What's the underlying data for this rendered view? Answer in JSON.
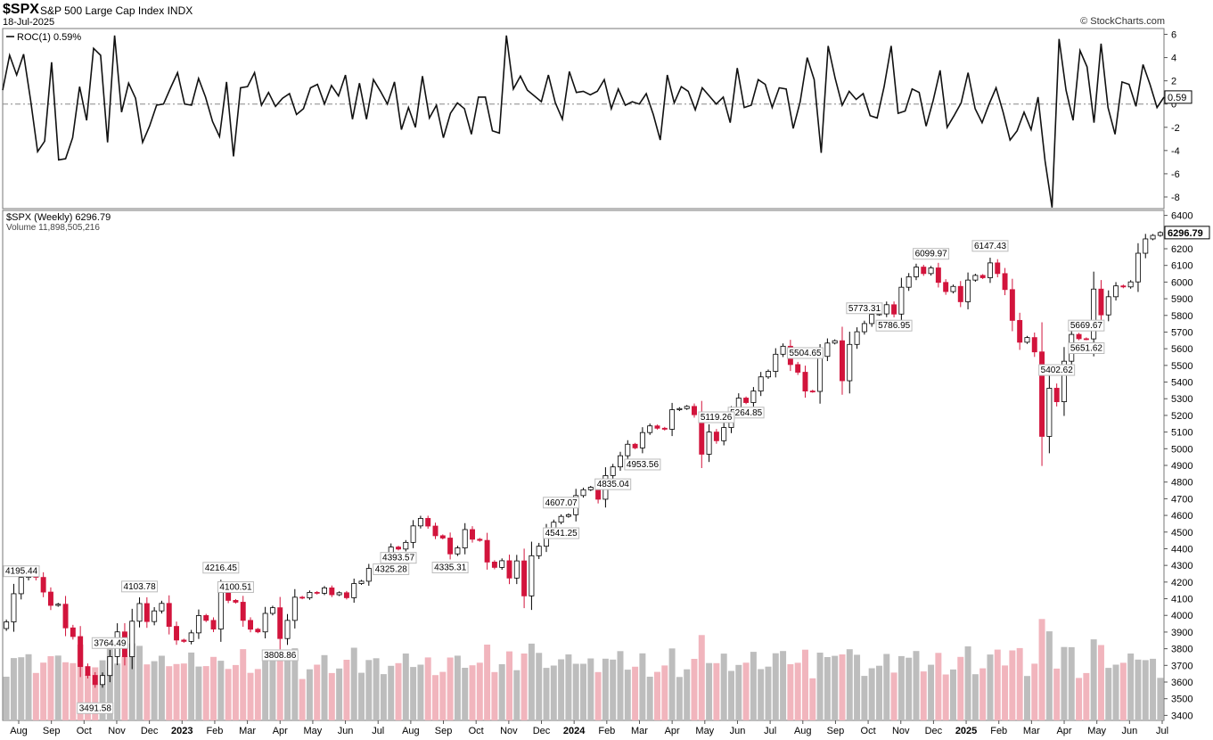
{
  "header": {
    "symbol": "$SPX",
    "name": "S&P 500 Large Cap Index",
    "exchange": "INDX",
    "date": "18-Jul-2025",
    "source": "© StockCharts.com"
  },
  "colors": {
    "up": "#ffffff",
    "down": "#d2143c",
    "vol_up": "#bdbdbd",
    "vol_down": "#f1b5bd",
    "line": "#111111",
    "zero": "#888888"
  },
  "chart_data": [
    {
      "type": "line",
      "panel": "indicator",
      "legend": "ROC(1) 0.59%",
      "last_value_label": "0.59",
      "ylim": [
        -9,
        6.5
      ],
      "yticks": [
        6,
        4,
        2,
        0,
        -2,
        -4,
        -6,
        -8
      ],
      "reference_line": 0,
      "y": [
        1.2,
        4.2,
        2.5,
        4.3,
        0.3,
        -4.1,
        -3.2,
        3.6,
        -4.8,
        -4.7,
        -2.9,
        1.5,
        -1.4,
        4.8,
        4.2,
        -3.3,
        5.9,
        -0.7,
        1.8,
        0.5,
        -3.3,
        -1.9,
        -0.1,
        0.0,
        1.4,
        2.7,
        0.0,
        -0.1,
        2.2,
        0.6,
        -1.5,
        -2.8,
        1.9,
        -4.5,
        1.4,
        1.5,
        2.7,
        -0.1,
        1.0,
        -0.2,
        0.5,
        0.9,
        -0.9,
        -0.4,
        1.4,
        1.7,
        0.0,
        1.6,
        0.7,
        2.5,
        -1.3,
        1.8,
        -1.3,
        2.1,
        1.1,
        0.0,
        1.9,
        -2.2,
        -0.3,
        -2.0,
        2.4,
        -1.2,
        -0.1,
        -2.9,
        -0.8,
        0.1,
        -0.4,
        -2.6,
        0.6,
        0.6,
        -2.3,
        -2.5,
        5.9,
        1.3,
        2.4,
        1.2,
        0.7,
        0.2,
        2.5,
        0.1,
        -1.3,
        2.8,
        1.0,
        1.1,
        0.8,
        1.1,
        2.1,
        -0.4,
        1.3,
        -0.1,
        0.2,
        0.0,
        0.9,
        -0.9,
        -3.1,
        2.5,
        0.1,
        1.5,
        1.1,
        -0.5,
        1.4,
        0.7,
        0.0,
        0.6,
        -1.6,
        3.1,
        -0.3,
        -0.1,
        2.1,
        1.7,
        -0.3,
        1.4,
        1.3,
        -2.1,
        0.2,
        4.0,
        2.1,
        -4.2,
        5.0,
        2.2,
        -0.1,
        1.1,
        0.4,
        0.9,
        -1.0,
        -1.2,
        1.5,
        5.0,
        -0.8,
        -0.6,
        1.3,
        1.0,
        -1.9,
        0.3,
        2.9,
        -2.0,
        -1.0,
        0.1,
        2.7,
        -0.4,
        -1.6,
        0.0,
        1.4,
        -0.7,
        -3.1,
        -2.3,
        -0.7,
        -2.2,
        0.6,
        -4.9,
        -8.9,
        5.6,
        1.2,
        -1.4,
        4.6,
        3.2,
        -1.6,
        5.2,
        -0.3,
        -2.6,
        1.9,
        1.7,
        -0.2,
        3.4,
        1.7,
        -0.3,
        0.6
      ]
    },
    {
      "type": "candlestick",
      "panel": "price",
      "legend": "$SPX (Weekly) 6296.79",
      "volume_legend": "Volume 11,898,505,216",
      "last_price_label": "6296.79",
      "ylim": [
        3370,
        6430
      ],
      "yticks": [
        6400,
        6300,
        6200,
        6100,
        6000,
        5900,
        5800,
        5700,
        5600,
        5500,
        5400,
        5300,
        5200,
        5100,
        5000,
        4900,
        4800,
        4700,
        4600,
        4500,
        4400,
        4300,
        4200,
        4100,
        4000,
        3900,
        3800,
        3700,
        3600,
        3500,
        3400
      ],
      "x_month_labels": [
        "Aug",
        "Sep",
        "Oct",
        "Nov",
        "Dec",
        "2023",
        "Feb",
        "Mar",
        "Apr",
        "May",
        "Jun",
        "Jul",
        "Aug",
        "Sep",
        "Oct",
        "Nov",
        "Dec",
        "2024",
        "Feb",
        "Mar",
        "Apr",
        "May",
        "Jun",
        "Jul",
        "Aug",
        "Sep",
        "Oct",
        "Nov",
        "Dec",
        "2025",
        "Feb",
        "Mar",
        "Apr",
        "May",
        "Jun",
        "Jul"
      ],
      "year_labels": [
        "2023",
        "2024",
        "2025"
      ],
      "annotations": [
        {
          "text": "4325.28",
          "value": 4325.28
        },
        {
          "text": "3491.58",
          "value": 3491.58
        },
        {
          "text": "4100.51",
          "value": 4100.51
        },
        {
          "text": "3764.49",
          "value": 3764.49
        },
        {
          "text": "4195.44",
          "value": 4195.44
        },
        {
          "text": "3808.86",
          "value": 3808.86
        },
        {
          "text": "4607.07",
          "value": 4607.07
        },
        {
          "text": "4335.31",
          "value": 4335.31
        },
        {
          "text": "4541.25",
          "value": 4541.25
        },
        {
          "text": "4393.57",
          "value": 4393.57
        },
        {
          "text": "4216.45",
          "value": 4216.45
        },
        {
          "text": "4103.78",
          "value": 4103.78
        },
        {
          "text": "5264.85",
          "value": 5264.85
        },
        {
          "text": "4953.56",
          "value": 4953.56
        },
        {
          "text": "5669.67",
          "value": 5669.67
        },
        {
          "text": "5119.26",
          "value": 5119.26
        },
        {
          "text": "5651.62",
          "value": 5651.62
        },
        {
          "text": "5402.62",
          "value": 5402.62
        },
        {
          "text": "6099.97",
          "value": 6099.97
        },
        {
          "text": "5773.31",
          "value": 5773.31
        },
        {
          "text": "6147.43",
          "value": 6147.43
        },
        {
          "text": "5786.95",
          "value": 5786.95
        },
        {
          "text": "5504.65",
          "value": 5504.65
        },
        {
          "text": "4835.04",
          "value": 4835.04
        }
      ],
      "closes": [
        3961,
        4130,
        4228,
        4280,
        4228,
        4140,
        4060,
        4067,
        3925,
        3873,
        3693,
        3640,
        3585,
        3639,
        3753,
        3901,
        3752,
        3965,
        4071,
        3963,
        4027,
        4072,
        3934,
        3852,
        3844,
        3895,
        3999,
        3970,
        3918,
        4137,
        4090,
        4079,
        3970,
        3917,
        3901,
        4012,
        4046,
        3861,
        3970,
        4109,
        4105,
        4138,
        4133,
        4165,
        4124,
        4136,
        4106,
        4191,
        4205,
        4282,
        4299,
        4348,
        4410,
        4398,
        4438,
        4537,
        4582,
        4536,
        4478,
        4464,
        4369,
        4405,
        4515,
        4457,
        4450,
        4320,
        4288,
        4328,
        4224,
        4327,
        4117,
        4358,
        4415,
        4514,
        4559,
        4594,
        4604,
        4719,
        4754,
        4769,
        4697,
        4839,
        4891,
        4958,
        5027,
        5005,
        5097,
        5137,
        5123,
        5117,
        5234,
        5241,
        5254,
        5204,
        4967,
        5100,
        5048,
        5127,
        5222,
        5304,
        5277,
        5346,
        5431,
        5464,
        5567,
        5615,
        5505,
        5459,
        5346,
        5344,
        5554,
        5634,
        5648,
        5408,
        5626,
        5702,
        5751,
        5806,
        5809,
        5864,
        5808,
        5969,
        6032,
        6090,
        6051,
        6085,
        5998,
        5943,
        5974,
        5882,
        6012,
        6040,
        6026,
        6115,
        6051,
        5955,
        5770,
        5639,
        5667,
        5581,
        5074,
        5363,
        5282,
        5525,
        5686,
        5660,
        5659,
        5958,
        5803,
        5912,
        5977,
        5971,
        6001,
        6173,
        6259,
        6280,
        6297
      ]
    }
  ]
}
